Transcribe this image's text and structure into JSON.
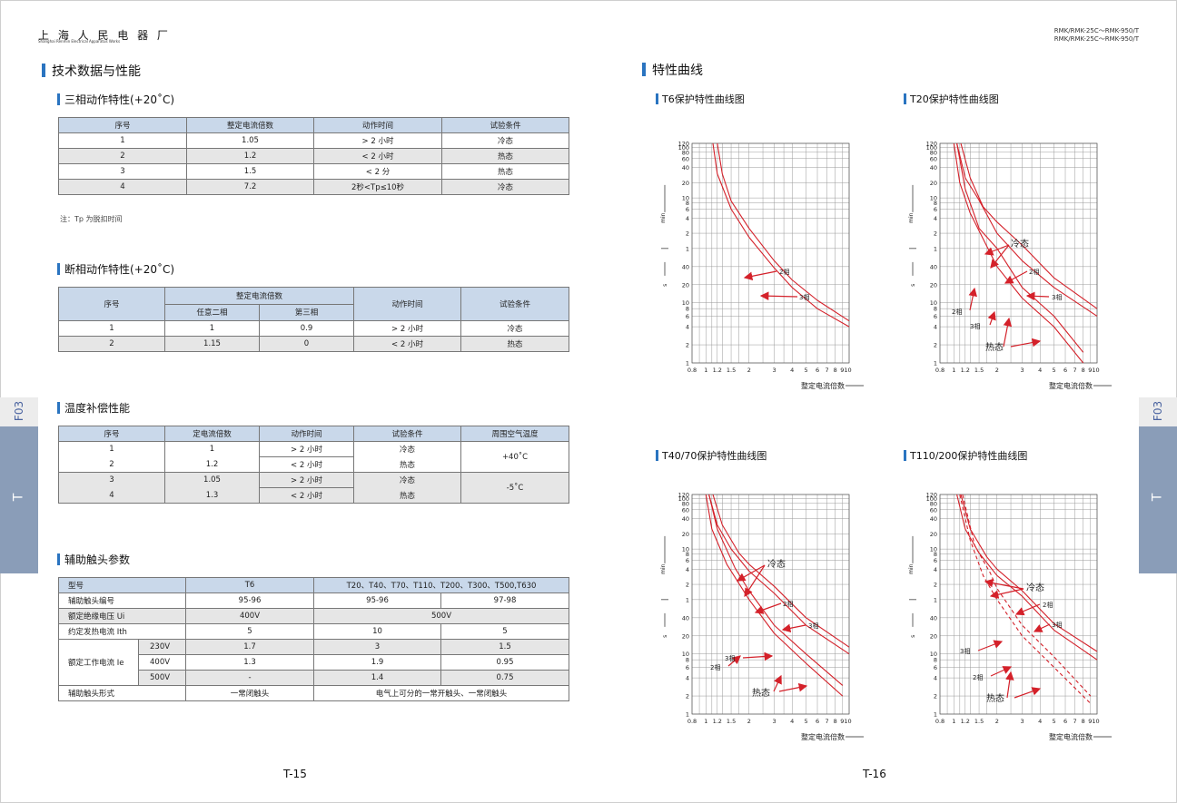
{
  "header": {
    "company_cn": "上 海 人 民 电 器 厂",
    "company_en": "Shanghai Renmin Electrical Apparatus Works",
    "model_line1": "RMK/RMK-25C～RMK-950/T",
    "model_line2": "RMK/RMK-25C～RMK-950/T"
  },
  "left": {
    "section_title": "技术数据与性能",
    "three_phase": {
      "title": "三相动作特性(+20˚C)",
      "headers": [
        "序号",
        "整定电流倍数",
        "动作时间",
        "试验条件"
      ],
      "rows": [
        [
          "1",
          "1.05",
          "> 2 小时",
          "冷态"
        ],
        [
          "2",
          "1.2",
          "< 2 小时",
          "热态"
        ],
        [
          "3",
          "1.5",
          "< 2 分",
          "热态"
        ],
        [
          "4",
          "7.2",
          "2秒<Tp≤10秒",
          "冷态"
        ]
      ],
      "note": "注：Tp 为脱扣时间"
    },
    "phase_loss": {
      "title": "断相动作特性(+20˚C)",
      "h_no": "序号",
      "h_mult": "整定电流倍数",
      "h_any2": "任意二相",
      "h_third": "第三相",
      "h_time": "动作时间",
      "h_cond": "试验条件",
      "rows": [
        [
          "1",
          "1",
          "0.9",
          "> 2 小时",
          "冷态"
        ],
        [
          "2",
          "1.15",
          "0",
          "< 2 小时",
          "热态"
        ]
      ]
    },
    "temp_comp": {
      "title": "温度补偿性能",
      "headers": [
        "序号",
        "定电流倍数",
        "动作时间",
        "试验条件",
        "周围空气温度"
      ],
      "rows": [
        [
          "1",
          "1",
          "> 2 小时",
          "冷态"
        ],
        [
          "2",
          "1.2",
          "< 2 小时",
          "热态"
        ],
        [
          "3",
          "1.05",
          "> 2 小时",
          "冷态"
        ],
        [
          "4",
          "1.3",
          "< 2 小时",
          "热态"
        ]
      ],
      "temps": [
        "+40˚C",
        "-5˚C"
      ]
    },
    "aux": {
      "title": "辅助触头参数",
      "h_model": "型号",
      "h_t6": "T6",
      "h_others": "T20、T40、T70、T110、T200、T300、T500,T630",
      "r1": [
        "辅助触头编号",
        "95-96",
        "95-96",
        "97-98"
      ],
      "r2": [
        "额定绝缘电压 Ui",
        "400V",
        "500V"
      ],
      "r3": [
        "约定发热电流 Ith",
        "5",
        "10",
        "5"
      ],
      "ie_label": "额定工作电流 Ie",
      "ie_rows": [
        [
          "230V",
          "1.7",
          "3",
          "1.5"
        ],
        [
          "400V",
          "1.3",
          "1.9",
          "0.95"
        ],
        [
          "500V",
          "-",
          "1.4",
          "0.75"
        ]
      ],
      "r_form": [
        "辅助触头形式",
        "一常闭触头",
        "电气上可分的一常开触头、一常闭触头"
      ]
    },
    "page_number": "T-15"
  },
  "right": {
    "section_title": "特性曲线",
    "page_number": "T-16",
    "axis": {
      "x_ticks": [
        "0.8",
        "1",
        "1.2",
        "1.5",
        "2",
        "3",
        "4",
        "5",
        "6",
        "7",
        "8",
        "910"
      ],
      "y_min_ticks": [
        "120",
        "100",
        "80",
        "60",
        "40",
        "20",
        "10",
        "8",
        "6",
        "4",
        "2",
        "1"
      ],
      "y_s_ticks": [
        "40",
        "20",
        "10",
        "8",
        "6",
        "4",
        "2",
        "1"
      ],
      "unit_min": "min",
      "unit_s": "s",
      "xlabel": "整定电流倍数"
    },
    "labels": {
      "two_phase": "2相",
      "three_phase": "3相",
      "cold": "冷态",
      "hot": "热态"
    },
    "chart_data": [
      {
        "type": "line",
        "title": "T6保护特性曲线图",
        "x_scale": "log",
        "xlim": [
          0.8,
          10
        ],
        "xlabel": "整定电流倍数",
        "series": [
          {
            "name": "2相",
            "x": [
              1.12,
              1.2,
              1.5,
              2,
              3,
              4,
              6,
              10
            ],
            "y_seconds": [
              7200,
              1800,
              360,
              100,
              38,
              18,
              8,
              4
            ]
          },
          {
            "name": "3相",
            "x": [
              1.2,
              1.3,
              1.5,
              2,
              3,
              4,
              6,
              10
            ],
            "y_seconds": [
              7200,
              1800,
              520,
              150,
              50,
              24,
              11,
              5
            ]
          }
        ]
      },
      {
        "type": "line",
        "title": "T20保护特性曲线图",
        "x_scale": "log",
        "xlim": [
          0.8,
          10
        ],
        "xlabel": "整定电流倍数",
        "series": [
          {
            "name": "冷态 2相",
            "x": [
              1.05,
              1.2,
              1.5,
              2,
              3,
              5,
              10
            ],
            "y_seconds": [
              7200,
              1500,
              540,
              120,
              50,
              18,
              6
            ]
          },
          {
            "name": "冷态 3相",
            "x": [
              1.12,
              1.3,
              1.6,
              2,
              3,
              5,
              10
            ],
            "y_seconds": [
              7200,
              1500,
              400,
              200,
              70,
              26,
              8
            ]
          },
          {
            "name": "热态 2相",
            "x": [
              1.0,
              1.1,
              1.3,
              2,
              3,
              5,
              8
            ],
            "y_seconds": [
              7200,
              1200,
              300,
              40,
              12,
              4,
              1
            ]
          },
          {
            "name": "热态 3相",
            "x": [
              1.05,
              1.2,
              1.5,
              2,
              3,
              5,
              8
            ],
            "y_seconds": [
              7200,
              900,
              150,
              60,
              18,
              6,
              1.5
            ]
          }
        ]
      },
      {
        "type": "line",
        "title": "T40/70保护特性曲线图",
        "x_scale": "log",
        "xlim": [
          0.8,
          10
        ],
        "xlabel": "整定电流倍数",
        "series": [
          {
            "name": "冷态 2相",
            "x": [
              1.05,
              1.2,
              1.5,
              2,
              3,
              5,
              10
            ],
            "y_seconds": [
              7200,
              1800,
              600,
              220,
              80,
              30,
              10
            ]
          },
          {
            "name": "冷态 3相",
            "x": [
              1.12,
              1.3,
              1.7,
              2,
              3,
              5,
              10
            ],
            "y_seconds": [
              7200,
              1800,
              500,
              300,
              110,
              40,
              13
            ]
          },
          {
            "name": "热态 2相",
            "x": [
              1.0,
              1.1,
              1.4,
              2,
              3,
              5,
              9
            ],
            "y_seconds": [
              7200,
              1500,
              300,
              60,
              22,
              7,
              2
            ]
          },
          {
            "name": "热态 3相",
            "x": [
              1.05,
              1.2,
              1.6,
              2,
              3,
              5,
              9
            ],
            "y_seconds": [
              7200,
              1500,
              250,
              90,
              30,
              10,
              3
            ]
          }
        ]
      },
      {
        "type": "line",
        "title": "T110/200保护特性曲线图",
        "x_scale": "log",
        "xlim": [
          0.8,
          10
        ],
        "xlabel": "整定电流倍数",
        "series": [
          {
            "name": "冷态 2相",
            "x": [
              1.05,
              1.2,
              1.5,
              2,
              3,
              5,
              10
            ],
            "y_seconds": [
              7200,
              1500,
              500,
              180,
              70,
              25,
              8
            ]
          },
          {
            "name": "冷态 3相",
            "x": [
              1.12,
              1.3,
              1.7,
              2,
              3,
              5,
              10
            ],
            "y_seconds": [
              7200,
              1500,
              420,
              240,
              90,
              32,
              11
            ]
          },
          {
            "name": "热态 2相",
            "x": [
              1.1,
              1.3,
              1.6,
              2,
              3,
              5,
              9
            ],
            "y_seconds": [
              7200,
              900,
              180,
              60,
              20,
              6,
              1.5
            ]
          },
          {
            "name": "热态 3相",
            "x": [
              1.15,
              1.4,
              1.8,
              2,
              3,
              5,
              9
            ],
            "y_seconds": [
              7200,
              700,
              200,
              100,
              30,
              9,
              2
            ]
          }
        ]
      }
    ]
  },
  "side_tabs": {
    "code": "F03",
    "letter": "T"
  }
}
